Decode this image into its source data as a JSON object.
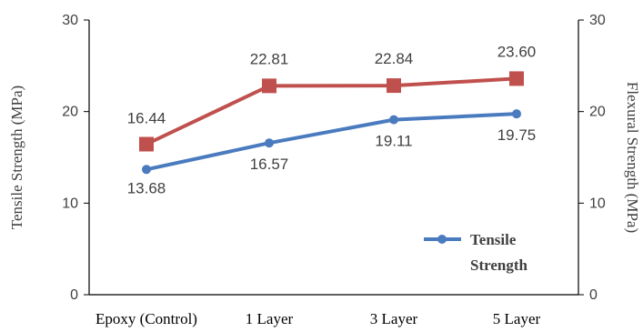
{
  "chart_data": {
    "type": "line",
    "categories": [
      "Epoxy (Control)",
      "1 Layer",
      "3 Layer",
      "5 Layer"
    ],
    "series": [
      {
        "name": "Tensile Strength",
        "values": [
          13.68,
          16.57,
          19.11,
          19.75
        ],
        "labels": [
          "13.68",
          "16.57",
          "19.11",
          "19.75"
        ],
        "axis": "left",
        "color": "#4a7bbf",
        "marker": "circle"
      },
      {
        "values": [
          16.44,
          22.81,
          22.84,
          23.6
        ],
        "labels": [
          "16.44",
          "22.81",
          "22.84",
          "23.60"
        ],
        "axis": "right",
        "color": "#c0504d",
        "marker": "square"
      }
    ],
    "ylabel": "Tensile Strength (MPa)",
    "y2label": "Flexural Strength (MPa)",
    "ylim": [
      0,
      30
    ],
    "y2lim": [
      0,
      30
    ],
    "yticks": [
      "0",
      "10",
      "20",
      "30"
    ],
    "y2ticks": [
      "0",
      "10",
      "20",
      "30"
    ],
    "grid": false,
    "legend": {
      "position": "bottom-right",
      "entries": [
        "Tensile",
        "Strength"
      ]
    }
  }
}
